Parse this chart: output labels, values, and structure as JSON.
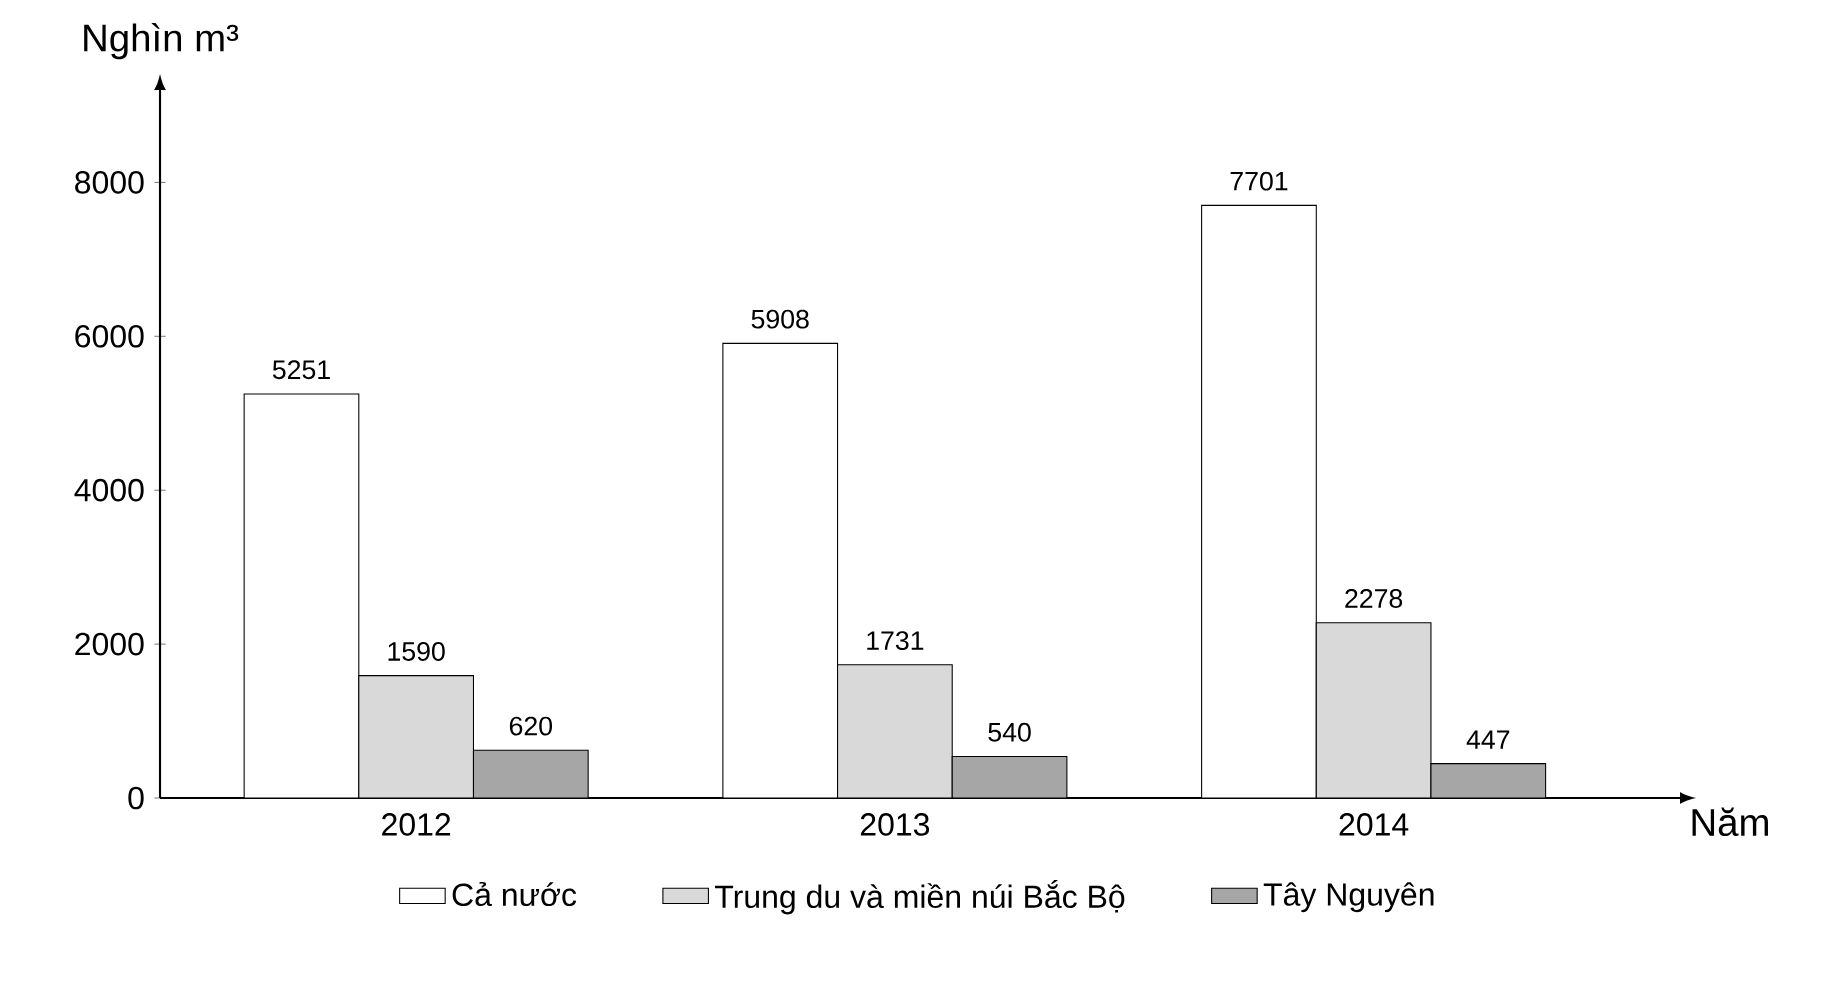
{
  "chart_data": {
    "type": "bar",
    "ylabel": "Nghìn m³",
    "xlabel": "Năm",
    "categories": [
      "2012",
      "2013",
      "2014"
    ],
    "series": [
      {
        "name": "Cả nước",
        "color": "#ffffff",
        "values": [
          5251,
          5908,
          7701
        ]
      },
      {
        "name": "Trung du và miền núi Bắc Bộ",
        "color": "#d9d9d9",
        "values": [
          1590,
          1731,
          2278
        ]
      },
      {
        "name": "Tây Nguyên",
        "color": "#a6a6a6",
        "values": [
          620,
          540,
          447
        ]
      }
    ],
    "ylim": [
      0,
      9200
    ],
    "yticks": [
      0,
      2000,
      4000,
      6000,
      8000
    ],
    "data_labels": true,
    "legend": "bottom",
    "grid": false
  }
}
